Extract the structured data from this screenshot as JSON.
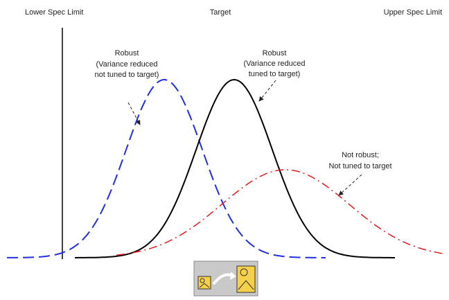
{
  "labels": {
    "lower_spec_limit": "Lower Spec Limit",
    "target": "Target",
    "upper_spec_limit": "Upper Spec Limit"
  },
  "annotations": [
    {
      "lines": [
        "Robust",
        "(Variance reduced",
        "not tuned to target)"
      ]
    },
    {
      "lines": [
        "Robust",
        "(Variance reduced",
        "tuned to target)"
      ]
    },
    {
      "lines": [
        "Not robust;",
        "Not tuned to target"
      ]
    }
  ]
}
